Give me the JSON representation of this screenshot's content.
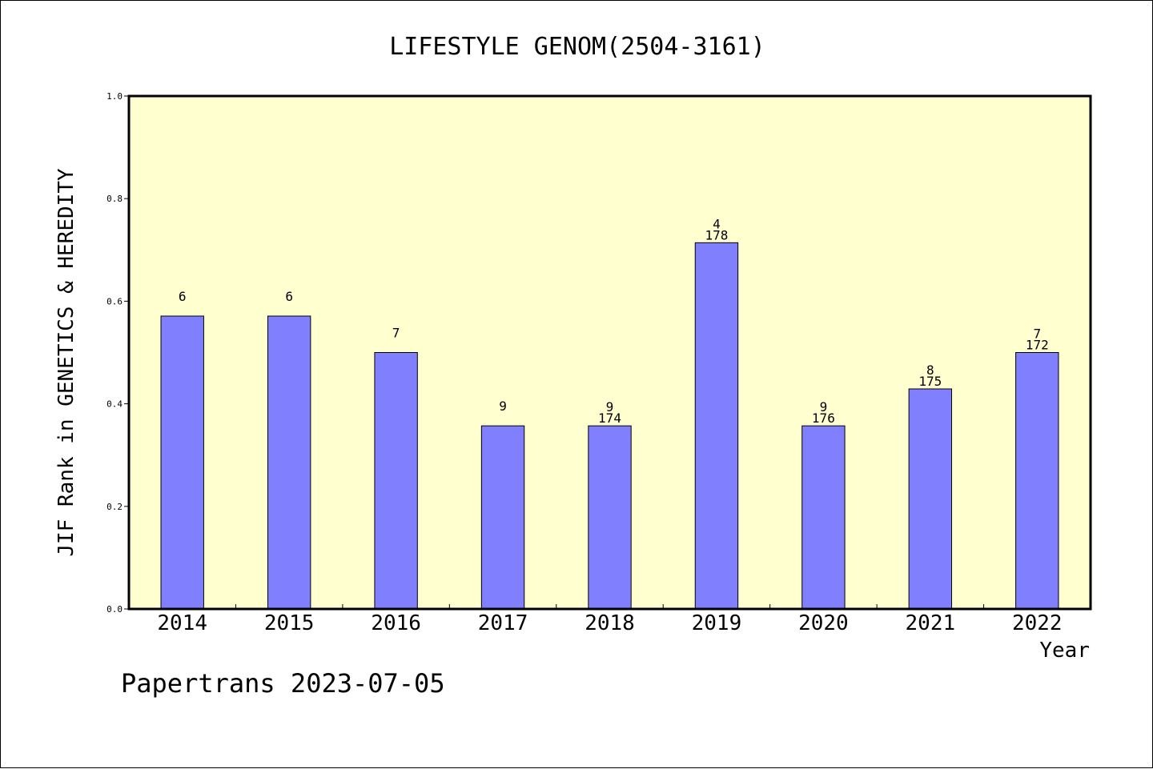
{
  "chart_data": {
    "type": "bar",
    "title": "LIFESTYLE GENOM(2504-3161)",
    "xlabel": "Year",
    "ylabel": "JIF Rank in GENETICS & HEREDITY",
    "ylim": [
      0,
      1.0
    ],
    "yticks": [
      "0.0",
      "0.2",
      "0.4",
      "0.6",
      "0.8",
      "1.0"
    ],
    "categories": [
      "2014",
      "2015",
      "2016",
      "2017",
      "2018",
      "2019",
      "2020",
      "2021",
      "2022"
    ],
    "values": [
      0.571,
      0.571,
      0.5,
      0.357,
      0.357,
      0.714,
      0.357,
      0.429,
      0.5
    ],
    "labels_top": [
      "6",
      "6",
      "7",
      "9",
      "9",
      "4",
      "9",
      "8",
      "7"
    ],
    "labels_bottom": [
      "",
      "",
      "",
      "",
      "174",
      "178",
      "176",
      "175",
      "172"
    ],
    "grid": false,
    "colors": {
      "plot_background": "#ffffd0",
      "bar_fill": "#8080ff",
      "bar_stroke": "#000000"
    }
  },
  "footer": "Papertrans 2023-07-05"
}
